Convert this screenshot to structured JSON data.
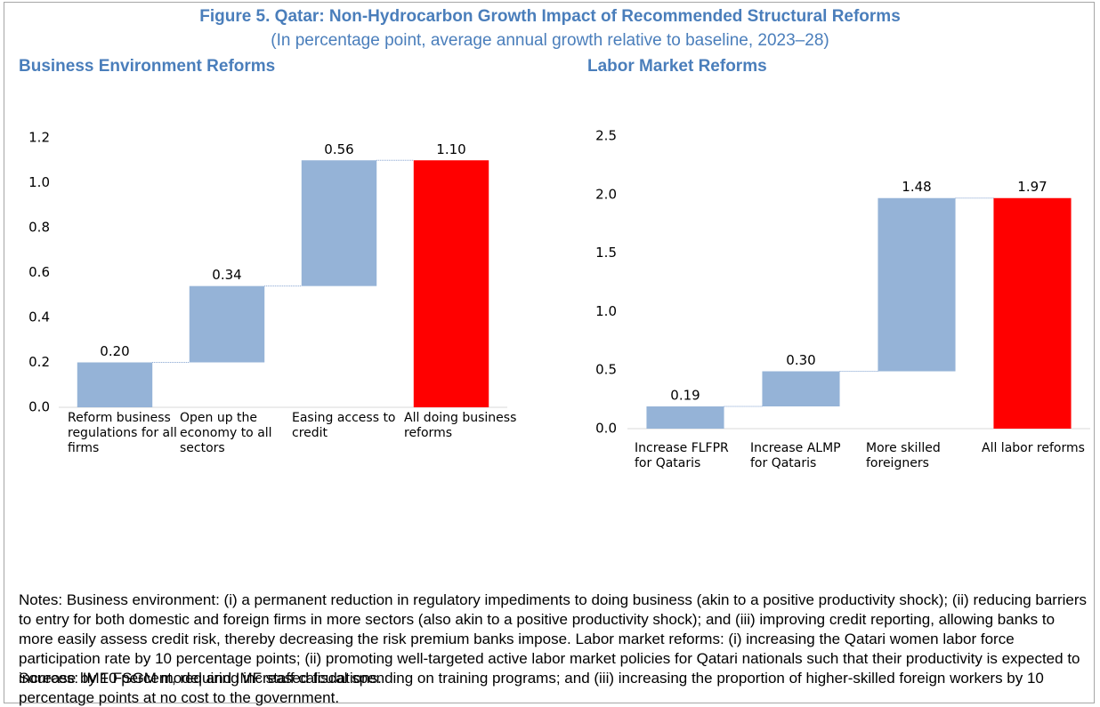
{
  "figure": {
    "title": "Figure 5. Qatar: Non-Hydrocarbon Growth Impact of Recommended Structural Reforms",
    "subtitle": "(In percentage point, average annual growth relative to baseline, 2023–28)"
  },
  "chart_data": [
    {
      "type": "waterfall",
      "title": "Business Environment Reforms",
      "categories": [
        "Reform business regulations for all firms",
        "Open up the economy to all sectors",
        "Easing access to credit",
        "All doing business reforms"
      ],
      "values": [
        0.2,
        0.34,
        0.56,
        1.1
      ],
      "value_labels": [
        "0.20",
        "0.34",
        "0.56",
        "1.10"
      ],
      "colors": [
        "#95b3d7",
        "#95b3d7",
        "#95b3d7",
        "#ff0000"
      ],
      "ylim": [
        0,
        1.2
      ],
      "yticks": [
        {
          "value": 0,
          "label": "0.0"
        },
        0.2,
        0.4,
        0.6,
        0.8,
        {
          "value": 1,
          "label": "1.0"
        },
        1.2
      ]
    },
    {
      "type": "waterfall",
      "title": "Labor Market Reforms",
      "categories": [
        "Increase FLFPR for Qataris",
        "Increase ALMP for Qataris",
        "More skilled foreigners",
        "All labor reforms"
      ],
      "values": [
        0.19,
        0.3,
        1.48,
        1.97
      ],
      "value_labels": [
        "0.19",
        "0.30",
        "1.48",
        "1.97"
      ],
      "colors": [
        "#95b3d7",
        "#95b3d7",
        "#95b3d7",
        "#ff0000"
      ],
      "ylim": [
        0,
        2.5
      ],
      "yticks": [
        {
          "value": 0,
          "label": "0.0"
        },
        0.5,
        {
          "value": 1,
          "label": "1.0"
        },
        1.5,
        {
          "value": 2,
          "label": "2.0"
        },
        2.5
      ]
    }
  ],
  "notes": "Notes: Business environment: (i) a permanent reduction in regulatory impediments to doing business (akin to a positive productivity shock); (ii) reducing barriers to entry for both domestic and foreign firms in more sectors (also akin to a positive productivity shock); and (iii) improving credit reporting, allowing banks to more easily assess credit risk, thereby decreasing the risk premium banks impose. Labor market reforms: (i) increasing the Qatari women labor force participation rate by 10 percentage points; (ii) promoting well-targeted active labor market policies for Qatari nationals such that their productivity is expected to increase by 10 percent, requiring increased fiscal spending on training programs; and (iii) increasing the proportion of higher-skilled foreign workers by 10 percentage points at no cost to the government.",
  "sources": "Sources: IMF FSGM model and IMF staff calculations."
}
